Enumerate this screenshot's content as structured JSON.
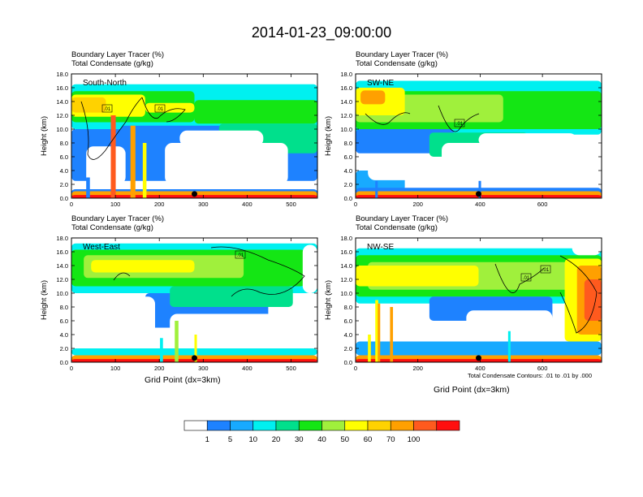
{
  "figure": {
    "title": "2014-01-23_09:00:00",
    "xlabel": "Grid Point (dx=3km)",
    "ylabel": "Height (km)",
    "contour_note": "Total Condensate Contours: .01 to .01 by .000",
    "shaded_field": "Boundary Layer Tracer    (%)",
    "contour_field": "Total Condensate    (g/kg)",
    "contour_label": ".01"
  },
  "colorbar": {
    "colors": [
      "#ffffff",
      "#1e82ff",
      "#18aaff",
      "#00f0f0",
      "#00e08c",
      "#14e614",
      "#a0f03c",
      "#ffff00",
      "#ffd200",
      "#ffa000",
      "#ff5a1e",
      "#ff0f0f"
    ],
    "labels": [
      "1",
      "5",
      "10",
      "20",
      "30",
      "40",
      "50",
      "60",
      "70",
      "100"
    ]
  },
  "chart_data": [
    {
      "type": "heatmap",
      "title": "South-North",
      "xlabel": "",
      "ylabel": "Height (km)",
      "xlim": [
        0,
        560
      ],
      "ylim": [
        0,
        18
      ],
      "xticks": [
        "0",
        "100",
        "200",
        "300",
        "400",
        "500"
      ],
      "yticks": [
        "0.0",
        "2.0",
        "4.0",
        "6.0",
        "8.0",
        "10.0",
        "12.0",
        "14.0",
        "16.0",
        "18.0"
      ],
      "marker_x": 280,
      "contour_labels": [
        ".01",
        ".01"
      ]
    },
    {
      "type": "heatmap",
      "title": "SW-NE",
      "xlabel": "",
      "ylabel": "Height (km)",
      "xlim": [
        0,
        790
      ],
      "ylim": [
        0,
        18
      ],
      "xticks": [
        "0",
        "200",
        "400",
        "600"
      ],
      "yticks": [
        "0.0",
        "2.0",
        "4.0",
        "6.0",
        "8.0",
        "10.0",
        "12.0",
        "14.0",
        "16.0",
        "18.0"
      ],
      "marker_x": 395,
      "contour_labels": [
        ".01"
      ]
    },
    {
      "type": "heatmap",
      "title": "West-East",
      "xlabel": "Grid Point (dx=3km)",
      "ylabel": "Height (km)",
      "xlim": [
        0,
        560
      ],
      "ylim": [
        0,
        18
      ],
      "xticks": [
        "0",
        "100",
        "200",
        "300",
        "400",
        "500"
      ],
      "yticks": [
        "0.0",
        "2.0",
        "4.0",
        "6.0",
        "8.0",
        "10.0",
        "12.0",
        "14.0",
        "16.0",
        "18.0"
      ],
      "marker_x": 280,
      "contour_labels": [
        ".01"
      ]
    },
    {
      "type": "heatmap",
      "title": "NW-SE",
      "xlabel": "Grid Point (dx=3km)",
      "ylabel": "Height (km)",
      "xlim": [
        0,
        790
      ],
      "ylim": [
        0,
        18
      ],
      "xticks": [
        "0",
        "200",
        "400",
        "600"
      ],
      "yticks": [
        "0.0",
        "2.0",
        "4.0",
        "6.0",
        "8.0",
        "10.0",
        "12.0",
        "14.0",
        "16.0",
        "18.0"
      ],
      "marker_x": 395,
      "contour_labels": [
        ".01",
        ".01"
      ]
    }
  ]
}
